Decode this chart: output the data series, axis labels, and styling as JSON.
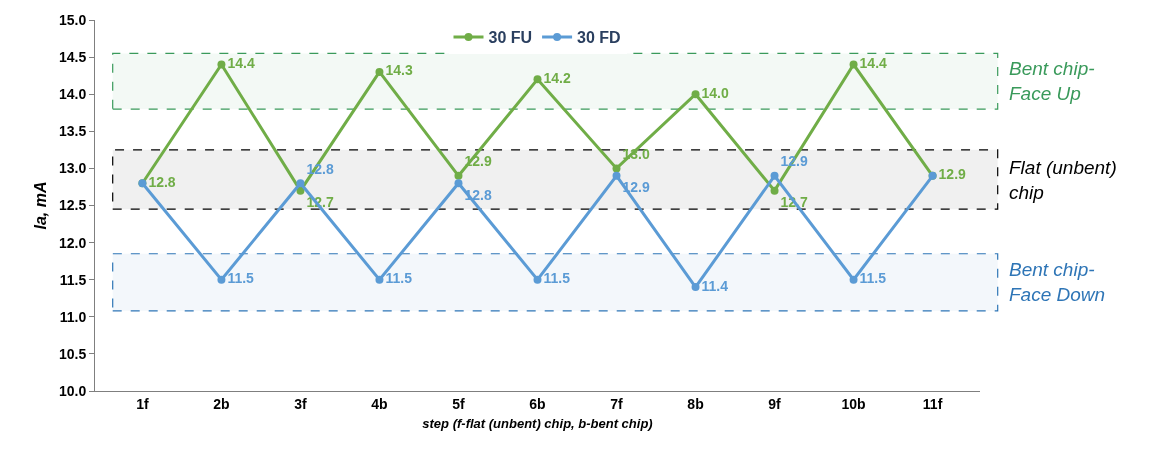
{
  "chart_data": {
    "type": "line",
    "xlabel": "step (f-flat (unbent) chip, b-bent chip)",
    "ylabel": "Ia, mA",
    "categories": [
      "1f",
      "2b",
      "3f",
      "4b",
      "5f",
      "6b",
      "7f",
      "8b",
      "9f",
      "10b",
      "11f"
    ],
    "series": [
      {
        "name": "30 FU",
        "color": "#70ad47",
        "values": [
          12.8,
          14.4,
          12.7,
          14.3,
          12.9,
          14.2,
          13.0,
          14.0,
          12.7,
          14.4,
          12.9
        ],
        "value_labels": [
          "12.8",
          "14.4",
          "12.7",
          "14.3",
          "12.9",
          "14.2",
          "13.0",
          "14.0",
          "12.7",
          "14.4",
          "12.9"
        ]
      },
      {
        "name": "30 FD",
        "color": "#5b9bd5",
        "values": [
          12.8,
          11.5,
          12.8,
          11.5,
          12.8,
          11.5,
          12.9,
          11.4,
          12.9,
          11.5,
          12.9
        ],
        "value_labels": [
          null,
          "11.5",
          "12.8",
          "11.5",
          "12.8",
          "11.5",
          "12.9",
          "11.4",
          "12.9",
          "11.5",
          null
        ]
      }
    ],
    "ylim": [
      10.0,
      15.0
    ],
    "yticks": [
      {
        "value": 10,
        "label": "10.0"
      },
      {
        "value": 10.5,
        "label": "10.5"
      },
      {
        "value": 11,
        "label": "11.0"
      },
      {
        "value": 11.5,
        "label": "11.5"
      },
      {
        "value": 12,
        "label": "12.0"
      },
      {
        "value": 12.5,
        "label": "12.5"
      },
      {
        "value": 13,
        "label": "13.0"
      },
      {
        "value": 13.5,
        "label": "13.5"
      },
      {
        "value": 14,
        "label": "14.0"
      },
      {
        "value": 14.5,
        "label": "14.5"
      },
      {
        "value": 15,
        "label": "15.0"
      }
    ],
    "bands": [
      {
        "axis": "y",
        "from": 13.8,
        "to": 14.55,
        "label": "Bent chip-\nFace Up",
        "color": "#3a9a5b"
      },
      {
        "axis": "y",
        "from": 12.45,
        "to": 13.25,
        "label": "Flat (unbent)\nchip",
        "color": "#000000"
      },
      {
        "axis": "y",
        "from": 11.08,
        "to": 11.85,
        "label": "Bent chip-\nFace Down",
        "color": "#2e75b6"
      }
    ],
    "grid": false,
    "legend": "top",
    "marker": "circle",
    "line_style": "solid"
  }
}
